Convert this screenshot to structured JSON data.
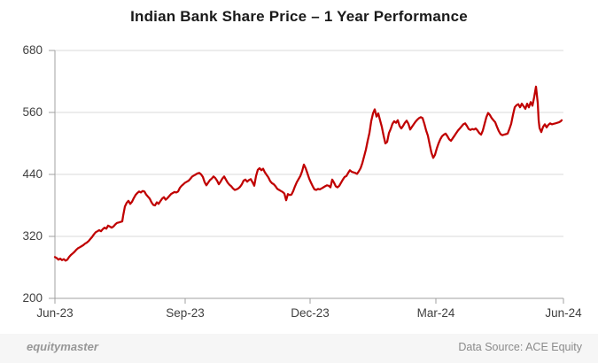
{
  "title": "Indian Bank Share Price – 1 Year Performance",
  "footer": {
    "brand": "equitymaster",
    "source": "Data Source: ACE Equity"
  },
  "chart_data": {
    "type": "line",
    "title": "Indian Bank Share Price – 1 Year Performance",
    "series_name": "Indian Bank share price",
    "xlabel": "",
    "ylabel": "",
    "x_ticks": [
      "Jun-23",
      "Sep-23",
      "Dec-23",
      "Mar-24",
      "Jun-24"
    ],
    "y_tick_labels": [
      "680",
      "560",
      "440",
      "320",
      "200"
    ],
    "y_ticks": [
      200,
      320,
      440,
      560,
      680
    ],
    "ylim": [
      200,
      680
    ],
    "grid": "horizontal",
    "legend": "none",
    "line_color": "#C00000",
    "grid_color": "#d9d9d9",
    "axis_color": "#a0a0a0",
    "points_format": "[x_pixel_on_time_axis, price_inr]",
    "points": [
      [
        62,
        280
      ],
      [
        64,
        278
      ],
      [
        66,
        275
      ],
      [
        68,
        277
      ],
      [
        70,
        274
      ],
      [
        72,
        276
      ],
      [
        74,
        273
      ],
      [
        76,
        275
      ],
      [
        78,
        280
      ],
      [
        80,
        284
      ],
      [
        82,
        287
      ],
      [
        84,
        290
      ],
      [
        86,
        294
      ],
      [
        88,
        297
      ],
      [
        90,
        299
      ],
      [
        92,
        301
      ],
      [
        94,
        303
      ],
      [
        96,
        306
      ],
      [
        98,
        308
      ],
      [
        100,
        311
      ],
      [
        102,
        315
      ],
      [
        104,
        319
      ],
      [
        106,
        324
      ],
      [
        108,
        328
      ],
      [
        110,
        330
      ],
      [
        112,
        332
      ],
      [
        114,
        330
      ],
      [
        116,
        334
      ],
      [
        118,
        337
      ],
      [
        120,
        335
      ],
      [
        122,
        341
      ],
      [
        124,
        339
      ],
      [
        126,
        337
      ],
      [
        128,
        339
      ],
      [
        130,
        343
      ],
      [
        132,
        346
      ],
      [
        134,
        347
      ],
      [
        136,
        348
      ],
      [
        138,
        349
      ],
      [
        139,
        360
      ],
      [
        141,
        378
      ],
      [
        143,
        385
      ],
      [
        145,
        389
      ],
      [
        147,
        383
      ],
      [
        149,
        387
      ],
      [
        151,
        394
      ],
      [
        153,
        400
      ],
      [
        155,
        404
      ],
      [
        157,
        407
      ],
      [
        159,
        405
      ],
      [
        161,
        408
      ],
      [
        163,
        407
      ],
      [
        165,
        401
      ],
      [
        167,
        397
      ],
      [
        169,
        393
      ],
      [
        171,
        386
      ],
      [
        173,
        381
      ],
      [
        175,
        380
      ],
      [
        177,
        386
      ],
      [
        179,
        383
      ],
      [
        181,
        388
      ],
      [
        183,
        393
      ],
      [
        185,
        396
      ],
      [
        187,
        391
      ],
      [
        189,
        394
      ],
      [
        191,
        398
      ],
      [
        193,
        402
      ],
      [
        195,
        404
      ],
      [
        197,
        406
      ],
      [
        199,
        405
      ],
      [
        201,
        407
      ],
      [
        203,
        414
      ],
      [
        205,
        418
      ],
      [
        207,
        421
      ],
      [
        209,
        424
      ],
      [
        211,
        426
      ],
      [
        213,
        428
      ],
      [
        215,
        432
      ],
      [
        217,
        436
      ],
      [
        219,
        438
      ],
      [
        221,
        440
      ],
      [
        223,
        442
      ],
      [
        225,
        443
      ],
      [
        227,
        440
      ],
      [
        229,
        435
      ],
      [
        231,
        425
      ],
      [
        233,
        419
      ],
      [
        235,
        424
      ],
      [
        237,
        429
      ],
      [
        239,
        432
      ],
      [
        241,
        436
      ],
      [
        243,
        433
      ],
      [
        245,
        428
      ],
      [
        247,
        421
      ],
      [
        249,
        426
      ],
      [
        251,
        432
      ],
      [
        253,
        436
      ],
      [
        255,
        430
      ],
      [
        257,
        424
      ],
      [
        259,
        420
      ],
      [
        261,
        417
      ],
      [
        263,
        413
      ],
      [
        265,
        410
      ],
      [
        267,
        411
      ],
      [
        269,
        413
      ],
      [
        271,
        416
      ],
      [
        273,
        421
      ],
      [
        275,
        428
      ],
      [
        277,
        430
      ],
      [
        279,
        426
      ],
      [
        281,
        429
      ],
      [
        283,
        431
      ],
      [
        285,
        425
      ],
      [
        287,
        418
      ],
      [
        289,
        437
      ],
      [
        291,
        449
      ],
      [
        293,
        452
      ],
      [
        295,
        448
      ],
      [
        297,
        451
      ],
      [
        299,
        444
      ],
      [
        301,
        439
      ],
      [
        303,
        434
      ],
      [
        305,
        427
      ],
      [
        307,
        423
      ],
      [
        309,
        421
      ],
      [
        311,
        417
      ],
      [
        313,
        412
      ],
      [
        315,
        410
      ],
      [
        317,
        408
      ],
      [
        319,
        406
      ],
      [
        321,
        403
      ],
      [
        323,
        390
      ],
      [
        325,
        402
      ],
      [
        327,
        400
      ],
      [
        329,
        401
      ],
      [
        331,
        408
      ],
      [
        333,
        417
      ],
      [
        335,
        425
      ],
      [
        337,
        431
      ],
      [
        339,
        437
      ],
      [
        341,
        446
      ],
      [
        343,
        459
      ],
      [
        345,
        452
      ],
      [
        347,
        442
      ],
      [
        349,
        432
      ],
      [
        351,
        424
      ],
      [
        353,
        417
      ],
      [
        355,
        411
      ],
      [
        357,
        410
      ],
      [
        359,
        412
      ],
      [
        361,
        411
      ],
      [
        363,
        413
      ],
      [
        365,
        415
      ],
      [
        367,
        417
      ],
      [
        369,
        419
      ],
      [
        371,
        418
      ],
      [
        373,
        415
      ],
      [
        375,
        430
      ],
      [
        377,
        424
      ],
      [
        379,
        417
      ],
      [
        381,
        415
      ],
      [
        383,
        418
      ],
      [
        385,
        424
      ],
      [
        387,
        430
      ],
      [
        389,
        435
      ],
      [
        391,
        437
      ],
      [
        393,
        443
      ],
      [
        395,
        448
      ],
      [
        397,
        445
      ],
      [
        399,
        444
      ],
      [
        401,
        443
      ],
      [
        403,
        441
      ],
      [
        405,
        446
      ],
      [
        407,
        452
      ],
      [
        409,
        462
      ],
      [
        411,
        475
      ],
      [
        413,
        488
      ],
      [
        415,
        505
      ],
      [
        417,
        520
      ],
      [
        419,
        543
      ],
      [
        421,
        558
      ],
      [
        423,
        566
      ],
      [
        425,
        552
      ],
      [
        427,
        558
      ],
      [
        429,
        545
      ],
      [
        431,
        532
      ],
      [
        433,
        515
      ],
      [
        435,
        500
      ],
      [
        437,
        503
      ],
      [
        439,
        520
      ],
      [
        441,
        528
      ],
      [
        443,
        538
      ],
      [
        445,
        543
      ],
      [
        447,
        540
      ],
      [
        449,
        545
      ],
      [
        451,
        534
      ],
      [
        453,
        529
      ],
      [
        455,
        534
      ],
      [
        457,
        540
      ],
      [
        459,
        544
      ],
      [
        461,
        538
      ],
      [
        463,
        527
      ],
      [
        465,
        532
      ],
      [
        467,
        537
      ],
      [
        469,
        542
      ],
      [
        471,
        546
      ],
      [
        473,
        549
      ],
      [
        475,
        551
      ],
      [
        477,
        549
      ],
      [
        479,
        538
      ],
      [
        481,
        525
      ],
      [
        483,
        515
      ],
      [
        485,
        498
      ],
      [
        487,
        482
      ],
      [
        489,
        472
      ],
      [
        491,
        478
      ],
      [
        493,
        490
      ],
      [
        495,
        500
      ],
      [
        497,
        508
      ],
      [
        499,
        514
      ],
      [
        501,
        517
      ],
      [
        503,
        519
      ],
      [
        505,
        514
      ],
      [
        507,
        508
      ],
      [
        509,
        505
      ],
      [
        511,
        510
      ],
      [
        513,
        515
      ],
      [
        515,
        520
      ],
      [
        517,
        525
      ],
      [
        519,
        529
      ],
      [
        521,
        533
      ],
      [
        523,
        537
      ],
      [
        525,
        539
      ],
      [
        527,
        534
      ],
      [
        529,
        528
      ],
      [
        531,
        526
      ],
      [
        533,
        528
      ],
      [
        535,
        527
      ],
      [
        537,
        529
      ],
      [
        539,
        525
      ],
      [
        541,
        520
      ],
      [
        543,
        517
      ],
      [
        545,
        525
      ],
      [
        547,
        538
      ],
      [
        549,
        551
      ],
      [
        551,
        559
      ],
      [
        553,
        555
      ],
      [
        555,
        549
      ],
      [
        557,
        545
      ],
      [
        559,
        541
      ],
      [
        561,
        532
      ],
      [
        563,
        524
      ],
      [
        565,
        518
      ],
      [
        567,
        516
      ],
      [
        569,
        517
      ],
      [
        571,
        518
      ],
      [
        573,
        519
      ],
      [
        575,
        528
      ],
      [
        577,
        538
      ],
      [
        579,
        555
      ],
      [
        581,
        570
      ],
      [
        583,
        574
      ],
      [
        585,
        576
      ],
      [
        587,
        570
      ],
      [
        589,
        577
      ],
      [
        591,
        572
      ],
      [
        593,
        567
      ],
      [
        595,
        577
      ],
      [
        597,
        570
      ],
      [
        599,
        580
      ],
      [
        601,
        573
      ],
      [
        603,
        590
      ],
      [
        605,
        610
      ],
      [
        607,
        578
      ],
      [
        608,
        545
      ],
      [
        609,
        530
      ],
      [
        611,
        522
      ],
      [
        613,
        532
      ],
      [
        615,
        537
      ],
      [
        617,
        531
      ],
      [
        619,
        536
      ],
      [
        621,
        539
      ],
      [
        623,
        537
      ],
      [
        625,
        538
      ],
      [
        627,
        539
      ],
      [
        629,
        540
      ],
      [
        631,
        541
      ],
      [
        633,
        543
      ],
      [
        634,
        545
      ]
    ]
  }
}
